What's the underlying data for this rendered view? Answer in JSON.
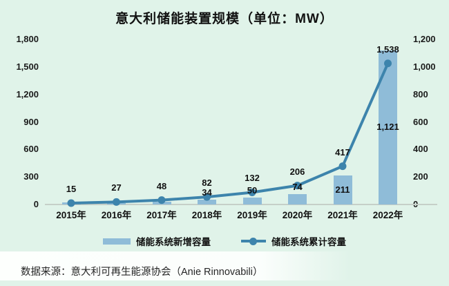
{
  "title": "意大利储能装置规模（单位：MW）",
  "source_note": "数据来源：意大利可再生能源协会（Anie Rinnovabili）",
  "colors": {
    "background": "#e0f3e9",
    "bar": "#8fbcd8",
    "line": "#3d84ac",
    "axis_line": "#c6cfc8",
    "text": "#111111"
  },
  "legend": {
    "items": [
      {
        "label": "储能系统新增容量",
        "marker": "bar-swatch"
      },
      {
        "label": "储能系统累计容量",
        "marker": "line-dot"
      }
    ]
  },
  "chart_data": {
    "type": "combo",
    "title": "意大利储能装置规模（单位：MW）",
    "categories": [
      "2015年",
      "2016年",
      "2017年",
      "2018年",
      "2019年",
      "2020年",
      "2021年",
      "2022年"
    ],
    "series": [
      {
        "name": "储能系统新增容量",
        "type": "bar",
        "axis": "right",
        "values": [
          15,
          12,
          21,
          34,
          50,
          74,
          211,
          1121
        ],
        "labels": [
          "",
          "",
          "",
          "34",
          "50",
          "74",
          "211",
          "1,121"
        ]
      },
      {
        "name": "储能系统累计容量",
        "type": "line",
        "axis": "left",
        "values": [
          15,
          27,
          48,
          82,
          132,
          206,
          417,
          1538
        ],
        "labels": [
          "15",
          "27",
          "48",
          "82",
          "132",
          "206",
          "417",
          "1,538"
        ]
      }
    ],
    "left_axis": {
      "min": 0,
      "max": 1800,
      "step": 300,
      "ticks": [
        "0",
        "300",
        "600",
        "900",
        "1,200",
        "1,500",
        "1,800"
      ]
    },
    "right_axis": {
      "min": 0,
      "max": 1200,
      "step": 200,
      "ticks": [
        "0",
        "200",
        "400",
        "600",
        "800",
        "1,000",
        "1,200"
      ]
    },
    "grid": false,
    "legend_position": "bottom",
    "unit": "MW"
  }
}
